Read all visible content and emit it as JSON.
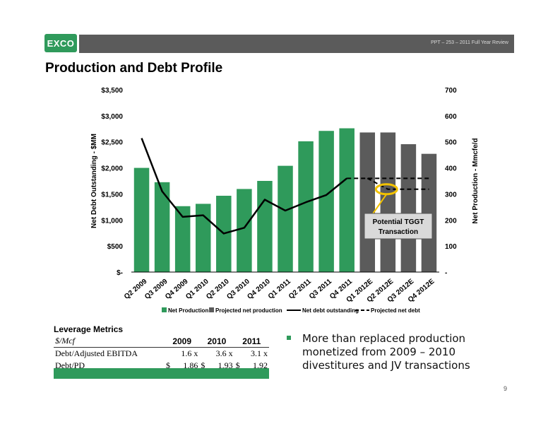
{
  "header": {
    "logo_text": "EXCO",
    "subtitle": "PPT – 253 – 2011 Full Year Review"
  },
  "page_title": "Production and Debt Profile",
  "colors": {
    "green": "#2f9a5b",
    "gray": "#5b5b5b",
    "callout_fill": "#d9d9d9",
    "highlight": "#f2c200"
  },
  "chart_data": {
    "type": "bar",
    "categories": [
      "Q2 2009",
      "Q3 2009",
      "Q4 2009",
      "Q1 2010",
      "Q2 2010",
      "Q3 2010",
      "Q4 2010",
      "Q1 2011",
      "Q2 2011",
      "Q3 2011",
      "Q4 2011",
      "Q1 2012E",
      "Q2 2012E",
      "Q3 2012E",
      "Q4 2012E"
    ],
    "series": [
      {
        "name": "Net Production",
        "axis": "right",
        "kind": "bar",
        "color": "#2f9a5b",
        "values": [
          400,
          345,
          253,
          262,
          293,
          319,
          350,
          408,
          502,
          542,
          552,
          null,
          null,
          null,
          null
        ]
      },
      {
        "name": "Projected net production",
        "axis": "right",
        "kind": "bar",
        "color": "#5b5b5b",
        "values": [
          null,
          null,
          null,
          null,
          null,
          null,
          null,
          null,
          null,
          null,
          null,
          536,
          536,
          491,
          454
        ]
      },
      {
        "name": "Net debt outstanding",
        "axis": "left",
        "kind": "line",
        "style": "solid",
        "values": [
          2570,
          1550,
          1060,
          1090,
          740,
          850,
          1390,
          1180,
          1340,
          1480,
          1800,
          null,
          null,
          null,
          null
        ]
      },
      {
        "name": "Projected net debt",
        "axis": "left",
        "kind": "line",
        "style": "dashed",
        "segments": [
          {
            "points": [
              [
                10,
                1800
              ],
              [
                11,
                1800
              ],
              [
                12,
                1800
              ],
              [
                13,
                1800
              ],
              [
                14,
                1800
              ]
            ]
          },
          {
            "points": [
              [
                11,
                1800
              ],
              [
                12,
                1590
              ],
              [
                13,
                1590
              ],
              [
                14,
                1590
              ]
            ]
          }
        ]
      }
    ],
    "y_left": {
      "label": "Net Debt Outstanding - $MM",
      "range": [
        0,
        3500
      ],
      "ticks": [
        {
          "v": 3500,
          "t": "$3,500"
        },
        {
          "v": 3000,
          "t": "$3,000"
        },
        {
          "v": 2500,
          "t": "$2,500"
        },
        {
          "v": 2000,
          "t": "$2,000"
        },
        {
          "v": 1500,
          "t": "$1,500"
        },
        {
          "v": 1000,
          "t": "$1,000"
        },
        {
          "v": 500,
          "t": "$500"
        },
        {
          "v": 0,
          "t": "$-"
        }
      ]
    },
    "y_right": {
      "label": "Net Production - Mmcfe/d",
      "range": [
        0,
        700
      ],
      "ticks": [
        {
          "v": 700,
          "t": "700"
        },
        {
          "v": 600,
          "t": "600"
        },
        {
          "v": 500,
          "t": "500"
        },
        {
          "v": 400,
          "t": "400"
        },
        {
          "v": 300,
          "t": "300"
        },
        {
          "v": 200,
          "t": "200"
        },
        {
          "v": 100,
          "t": "100"
        },
        {
          "v": 0,
          "t": "-"
        }
      ]
    },
    "annotation": {
      "text_line1": "Potential TGGT",
      "text_line2": "Transaction"
    },
    "legend_position": "bottom",
    "grid": false
  },
  "leverage": {
    "title": "Leverage Metrics",
    "unit": "$/Mcf",
    "years": [
      "2009",
      "2010",
      "2011"
    ],
    "rows": [
      {
        "label": "Debt/Adjusted EBITDA",
        "cells": [
          "",
          "1.6 x",
          "",
          "3.6 x",
          "",
          "3.1 x"
        ]
      },
      {
        "label": "Debt/PD",
        "cells": [
          "$",
          "1.86",
          "$",
          "1.93",
          "$",
          "1.92"
        ]
      }
    ]
  },
  "bullet": "More than replaced production monetized from 2009 – 2010 divestitures and JV transactions",
  "page_number": "9"
}
